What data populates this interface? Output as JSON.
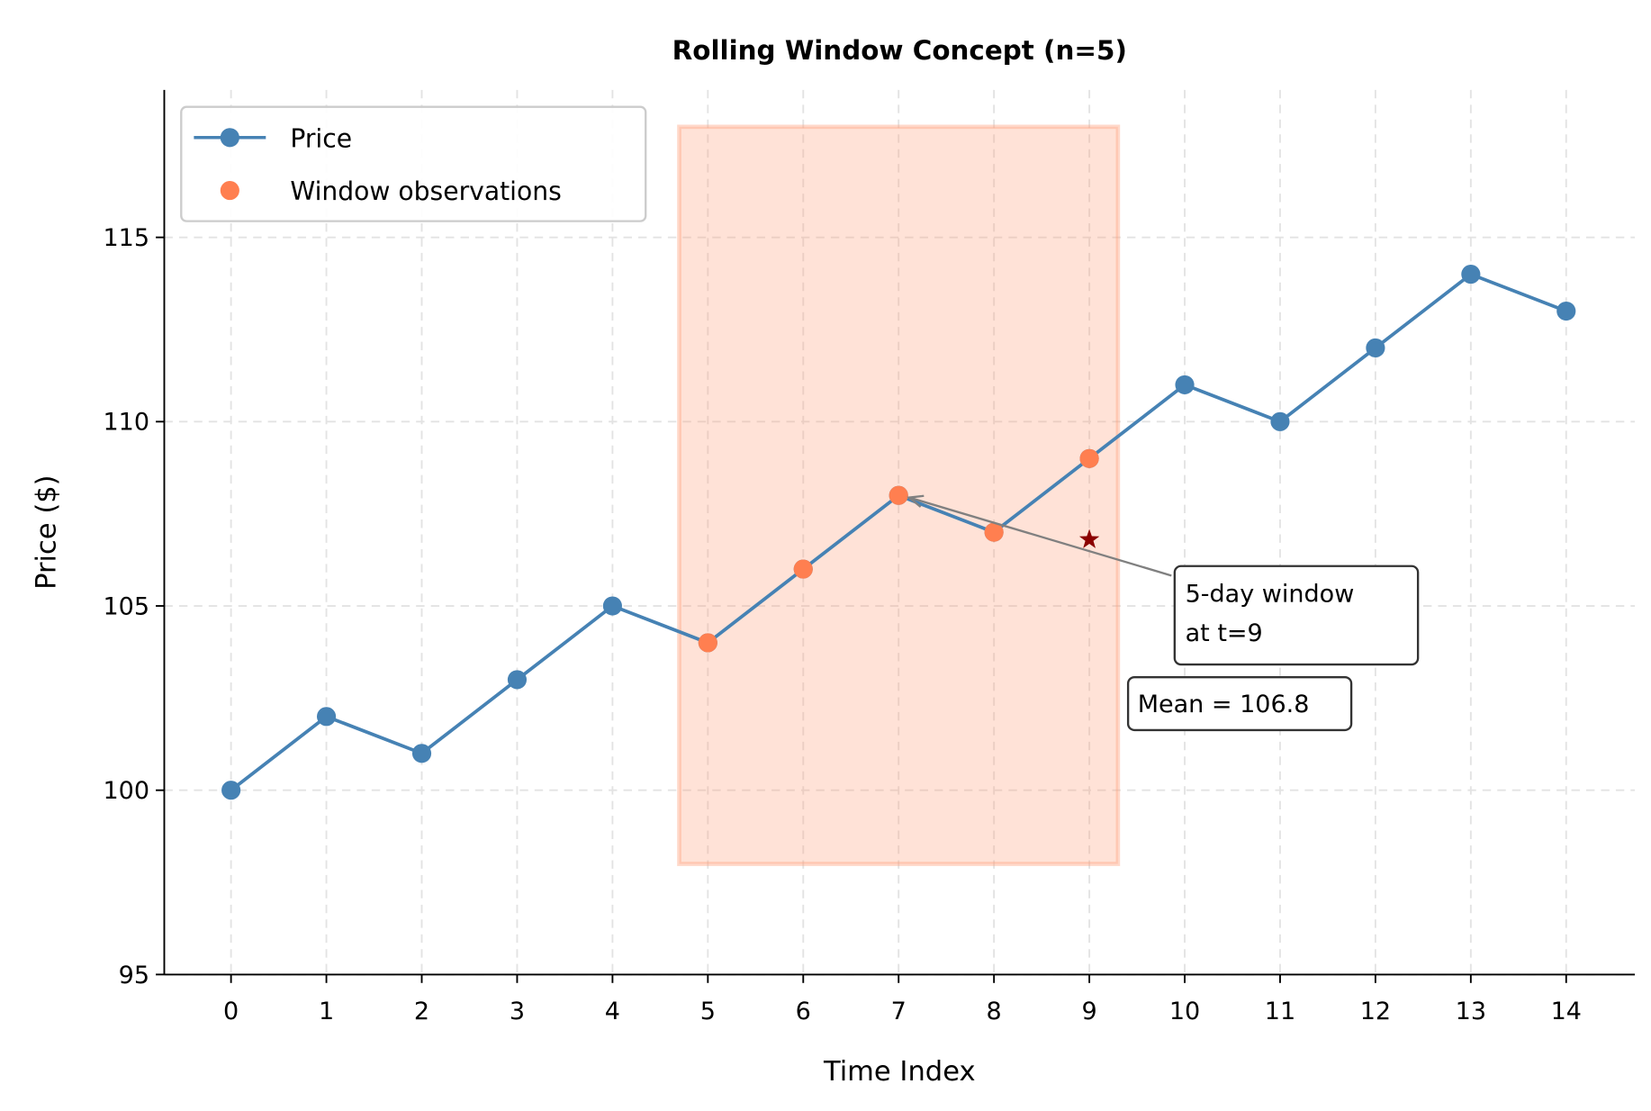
{
  "chart_data": {
    "type": "line",
    "title": "Rolling Window Concept (n=5)",
    "xlabel": "Time Index",
    "ylabel": "Price ($)",
    "xlim": [
      -0.7,
      14.72
    ],
    "ylim": [
      95,
      119
    ],
    "xticks": [
      0,
      1,
      2,
      3,
      4,
      5,
      6,
      7,
      8,
      9,
      10,
      11,
      12,
      13,
      14
    ],
    "yticks": [
      95,
      100,
      105,
      110,
      115
    ],
    "grid": true,
    "legend_position": "top-left",
    "series": [
      {
        "name": "Price",
        "color": "#4682b4",
        "x": [
          0,
          1,
          2,
          3,
          4,
          5,
          6,
          7,
          8,
          9,
          10,
          11,
          12,
          13,
          14
        ],
        "y": [
          100,
          102,
          101,
          103,
          105,
          104,
          106,
          108,
          107,
          109,
          111,
          110,
          112,
          114,
          113
        ]
      },
      {
        "name": "Window observations",
        "color": "#ff7f50",
        "x": [
          5,
          6,
          7,
          8,
          9
        ],
        "y": [
          104,
          106,
          108,
          107,
          109
        ]
      }
    ],
    "window_region": {
      "x": [
        4.7,
        9.3
      ],
      "y": [
        98,
        118
      ],
      "color": "#ffa07a"
    },
    "mean_marker": {
      "x": 9,
      "y": 106.8,
      "color": "#8b0000"
    },
    "annotations": [
      {
        "text": "5-day window",
        "text2": "at t=9",
        "target": [
          7,
          108
        ]
      },
      {
        "text": "Mean = 106.8"
      }
    ]
  }
}
